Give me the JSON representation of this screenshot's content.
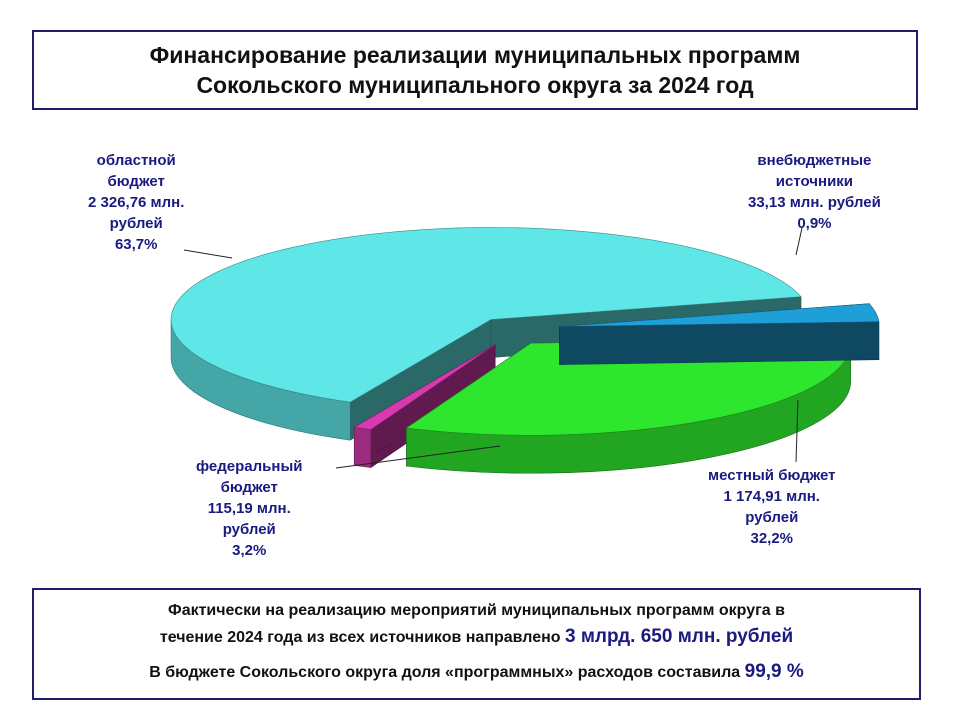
{
  "title": {
    "line1": "Финансирование реализации муниципальных программ",
    "line2": "Сокольского муниципального округа за 2024 год"
  },
  "chart_data": {
    "type": "pie",
    "style": "3d-exploded",
    "slices": [
      {
        "name": "областной бюджет",
        "value": 2326.76,
        "percent": 63.7,
        "color": "#5fe6e6",
        "label_lines": [
          "областной",
          "бюджет",
          "2 326,76 млн.",
          "рублей",
          "63,7%"
        ]
      },
      {
        "name": "федеральный бюджет",
        "value": 115.19,
        "percent": 3.2,
        "color": "#1e9fd8",
        "label_lines": [
          "федеральный",
          "бюджет",
          "115,19 млн.",
          "рублей",
          "3,2%"
        ]
      },
      {
        "name": "местный бюджет",
        "value": 1174.91,
        "percent": 32.2,
        "color": "#2fe62f",
        "label_lines": [
          "местный бюджет",
          "1 174,91 млн.",
          "рублей",
          "32,2%"
        ]
      },
      {
        "name": "внебюджетные источники",
        "value": 33.13,
        "percent": 0.9,
        "color": "#d83ab0",
        "label_lines": [
          "внебюджетные",
          "источники",
          "33,13 млн. рублей",
          "0,9%"
        ]
      }
    ]
  },
  "summary": {
    "line1": "Фактически на реализацию мероприятий муниципальных программ округа в",
    "line2_text": "течение 2024 года из всех источников направлено ",
    "line2_highlight": "3 млрд. 650 млн. рублей",
    "line3_text": "В бюджете Сокольского округа доля «программных» расходов составила ",
    "line3_highlight": "99,9 %"
  }
}
